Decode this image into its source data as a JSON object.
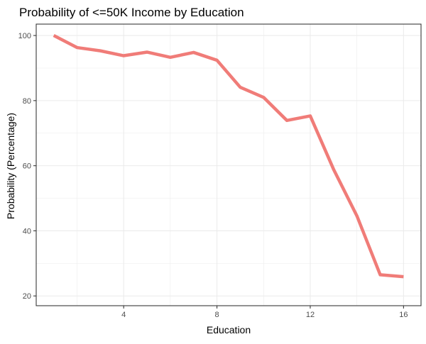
{
  "chart_data": {
    "type": "line",
    "title": "Probability of <=50K Income by Education",
    "xlabel": "Education",
    "ylabel": "Probability (Percentage)",
    "xlim": [
      0.25,
      16.75
    ],
    "ylim": [
      17,
      103.5
    ],
    "x_ticks": [
      4,
      8,
      12,
      16
    ],
    "y_ticks": [
      20,
      40,
      60,
      80,
      100
    ],
    "grid": true,
    "legend": "none",
    "series": [
      {
        "color": "#f07c78",
        "x": [
          1,
          2,
          3,
          4,
          5,
          6,
          7,
          8,
          9,
          10,
          11,
          12,
          13,
          14,
          15,
          16
        ],
        "y": [
          100,
          96.3,
          95.3,
          93.8,
          94.9,
          93.3,
          94.8,
          92.4,
          84.1,
          81.0,
          73.9,
          75.3,
          58.9,
          44.6,
          26.5,
          25.9
        ]
      }
    ]
  }
}
